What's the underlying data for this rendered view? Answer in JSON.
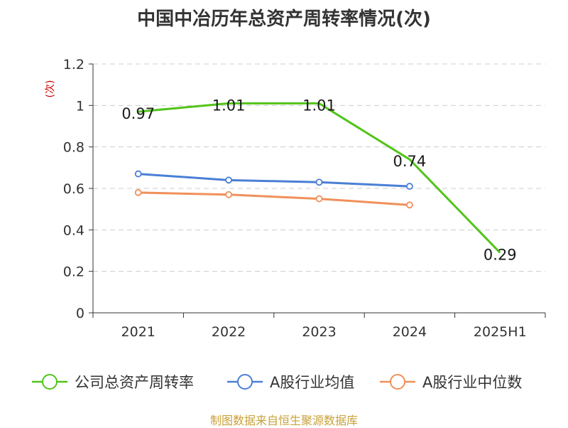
{
  "chart_data": {
    "type": "line",
    "title": "中国中冶历年总资产周转率情况(次)",
    "ylabel": "(次)",
    "categories": [
      "2021",
      "2022",
      "2023",
      "2024",
      "2025H1"
    ],
    "yticks": [
      "0",
      "0.2",
      "0.4",
      "0.6",
      "0.8",
      "1",
      "1.2"
    ],
    "ylim": [
      0,
      1.2
    ],
    "grid": true,
    "legend_position": "bottom",
    "series": [
      {
        "name": "公司总资产周转率",
        "color": "#52c41a",
        "values": [
          0.97,
          1.01,
          1.01,
          0.74,
          0.29
        ],
        "labels": [
          "0.97",
          "1.01",
          "1.01",
          "0.74",
          "0.29"
        ]
      },
      {
        "name": "A股行业均值",
        "color": "#4a7fd6",
        "values": [
          0.67,
          0.64,
          0.63,
          0.61,
          null
        ]
      },
      {
        "name": "A股行业中位数",
        "color": "#f0905a",
        "values": [
          0.58,
          0.57,
          0.55,
          0.52,
          null
        ]
      }
    ]
  },
  "source": "制图数据来自恒生聚源数据库"
}
